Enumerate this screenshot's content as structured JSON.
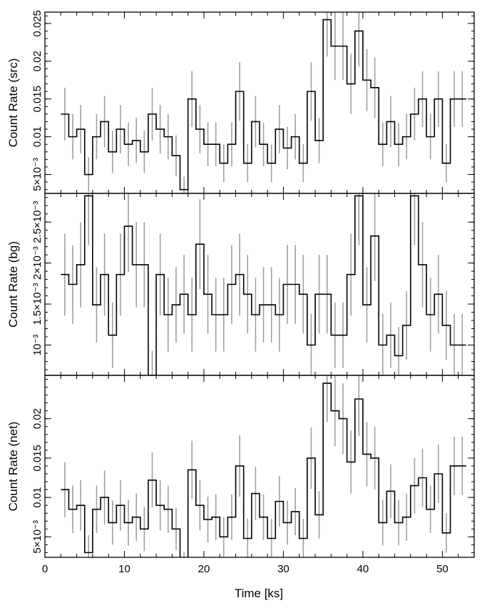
{
  "chart_data": {
    "type": "line",
    "style": "step-histogram-with-errorbars",
    "xlabel": "Time [ks]",
    "xlim": [
      0,
      54
    ],
    "x_ticks": [
      0,
      10,
      20,
      30,
      40,
      50
    ],
    "x_tick_labels": [
      "0",
      "10",
      "20",
      "30",
      "40",
      "50"
    ],
    "bin_centers": [
      2.5,
      3.5,
      4.5,
      5.5,
      6.5,
      7.5,
      8.5,
      9.5,
      10.5,
      11.5,
      12.5,
      13.5,
      14.5,
      15.5,
      16.5,
      17.5,
      18.5,
      19.5,
      20.5,
      21.5,
      22.5,
      23.5,
      24.5,
      25.5,
      26.5,
      27.5,
      28.5,
      29.5,
      30.5,
      31.5,
      32.5,
      33.5,
      34.5,
      35.5,
      36.5,
      37.5,
      38.5,
      39.5,
      40.5,
      41.5,
      42.5,
      43.5,
      44.5,
      45.5,
      46.5,
      47.5,
      48.5,
      49.5,
      50.5,
      51.5,
      52.5
    ],
    "panels": [
      {
        "ylabel": "Count Rate (src)",
        "ylim": [
          0.0025,
          0.0265
        ],
        "y_ticks": [
          0.005,
          0.01,
          0.015,
          0.02,
          0.025
        ],
        "y_tick_labels": [
          "5×10⁻³",
          "0.01",
          "0.015",
          "0.02",
          "0.025"
        ],
        "values": [
          0.013,
          0.01,
          0.011,
          0.005,
          0.01,
          0.012,
          0.008,
          0.011,
          0.009,
          0.0095,
          0.008,
          0.013,
          0.011,
          0.01,
          0.0075,
          0.003,
          0.015,
          0.011,
          0.009,
          0.009,
          0.0065,
          0.009,
          0.016,
          0.0065,
          0.012,
          0.009,
          0.0065,
          0.011,
          0.0085,
          0.01,
          0.0065,
          0.016,
          0.0095,
          0.0255,
          0.022,
          0.022,
          0.017,
          0.024,
          0.0175,
          0.0165,
          0.009,
          0.012,
          0.009,
          0.01,
          0.013,
          0.015,
          0.01,
          0.015,
          0.0065,
          0.015,
          0.015
        ],
        "errors": [
          0.0035,
          0.003,
          0.0032,
          0.0023,
          0.003,
          0.0034,
          0.0028,
          0.0032,
          0.0029,
          0.003,
          0.0028,
          0.0035,
          0.0032,
          0.003,
          0.0027,
          0.0017,
          0.0037,
          0.0032,
          0.0029,
          0.0029,
          0.0025,
          0.0029,
          0.0039,
          0.0025,
          0.0034,
          0.0029,
          0.0025,
          0.0032,
          0.0028,
          0.003,
          0.0025,
          0.0039,
          0.003,
          0.0049,
          0.0045,
          0.0045,
          0.004,
          0.0047,
          0.0041,
          0.004,
          0.0029,
          0.0034,
          0.0029,
          0.003,
          0.0035,
          0.0037,
          0.003,
          0.0037,
          0.0025,
          0.0037,
          0.0037
        ]
      },
      {
        "ylabel": "Count Rate (bg)",
        "ylim": [
          0.00063,
          0.00285
        ],
        "y_ticks": [
          0.001,
          0.0015,
          0.002,
          0.0025
        ],
        "y_tick_labels": [
          "10⁻³",
          "1.5×10⁻³",
          "2×10⁻³",
          "2.5×10⁻³"
        ],
        "values": [
          0.00186,
          0.00174,
          0.00198,
          0.00282,
          0.00149,
          0.00186,
          0.00112,
          0.00186,
          0.00245,
          0.00198,
          0.00198,
          0.00063,
          0.00186,
          0.00137,
          0.00149,
          0.00162,
          0.00137,
          0.00223,
          0.00162,
          0.00137,
          0.00137,
          0.00174,
          0.00186,
          0.00162,
          0.00137,
          0.00149,
          0.00149,
          0.00137,
          0.00174,
          0.00174,
          0.00162,
          0.001,
          0.00162,
          0.00162,
          0.00112,
          0.00112,
          0.00186,
          0.00282,
          0.00149,
          0.00233,
          0.001,
          0.00112,
          0.00087,
          0.00124,
          0.00282,
          0.00198,
          0.00137,
          0.00162,
          0.00124,
          0.001,
          0.001
        ],
        "errors": [
          0.0005,
          0.00048,
          0.00052,
          0.0006,
          0.00046,
          0.0005,
          0.0004,
          0.0005,
          0.00056,
          0.00052,
          0.00052,
          0.0003,
          0.0005,
          0.00045,
          0.00046,
          0.00048,
          0.00045,
          0.00055,
          0.00048,
          0.00045,
          0.00045,
          0.00048,
          0.0005,
          0.00048,
          0.00045,
          0.00046,
          0.00046,
          0.00045,
          0.00048,
          0.00048,
          0.00048,
          0.00038,
          0.00048,
          0.00048,
          0.0004,
          0.0004,
          0.0005,
          0.0006,
          0.00046,
          0.00055,
          0.00038,
          0.0004,
          0.00035,
          0.00042,
          0.0006,
          0.00052,
          0.00045,
          0.00048,
          0.00042,
          0.00038,
          0.00038
        ]
      },
      {
        "ylabel": "Count Rate (net)",
        "ylim": [
          0.0024,
          0.0255
        ],
        "y_ticks": [
          0.005,
          0.01,
          0.015,
          0.02
        ],
        "y_tick_labels": [
          "5×10⁻³",
          "0.01",
          "0.015",
          "0.02"
        ],
        "values": [
          0.011,
          0.0085,
          0.009,
          0.003,
          0.0085,
          0.01,
          0.0068,
          0.009,
          0.0068,
          0.0075,
          0.006,
          0.0122,
          0.009,
          0.0085,
          0.006,
          0.0015,
          0.0135,
          0.009,
          0.0072,
          0.0075,
          0.005,
          0.0075,
          0.014,
          0.0048,
          0.0105,
          0.0075,
          0.0048,
          0.0095,
          0.0068,
          0.0082,
          0.0048,
          0.015,
          0.0078,
          0.0245,
          0.021,
          0.02,
          0.0145,
          0.0225,
          0.0155,
          0.015,
          0.0068,
          0.0108,
          0.0068,
          0.0075,
          0.0115,
          0.0125,
          0.0085,
          0.013,
          0.0055,
          0.014,
          0.014
        ],
        "errors": [
          0.0035,
          0.003,
          0.0032,
          0.0022,
          0.003,
          0.0034,
          0.0028,
          0.0032,
          0.0029,
          0.003,
          0.0028,
          0.0035,
          0.0032,
          0.003,
          0.0027,
          0.0016,
          0.0037,
          0.0032,
          0.0029,
          0.0029,
          0.0025,
          0.0029,
          0.0039,
          0.0025,
          0.0034,
          0.0029,
          0.0025,
          0.0032,
          0.0028,
          0.003,
          0.0025,
          0.0039,
          0.003,
          0.0049,
          0.0045,
          0.0045,
          0.004,
          0.0047,
          0.0041,
          0.004,
          0.0029,
          0.0034,
          0.0029,
          0.003,
          0.0035,
          0.0037,
          0.003,
          0.0037,
          0.0025,
          0.0037,
          0.0037
        ]
      }
    ]
  }
}
